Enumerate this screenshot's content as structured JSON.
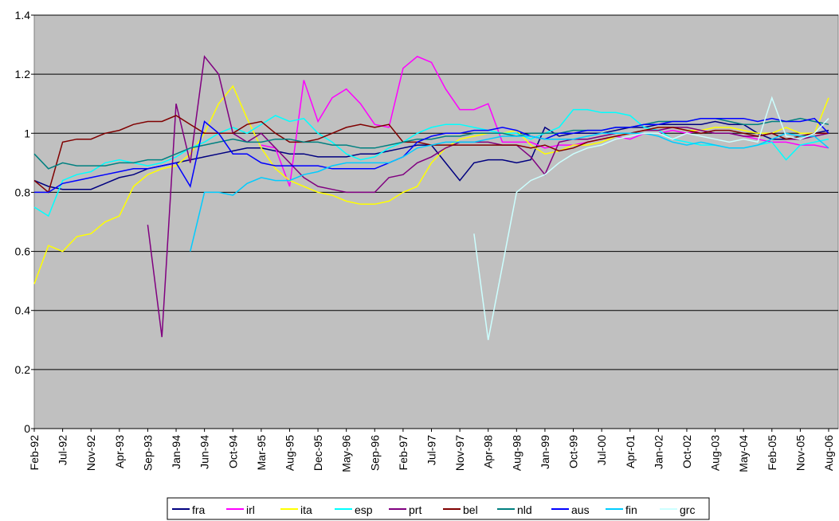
{
  "chart_data": {
    "type": "line",
    "categories": [
      "Feb-92",
      null,
      "Jul-92",
      null,
      "Nov-92",
      null,
      "Apr-93",
      null,
      "Sep-93",
      null,
      "Jan-94",
      null,
      "Jun-94",
      null,
      "Oct-94",
      null,
      "Mar-95",
      null,
      "Aug-95",
      null,
      "Dec-95",
      null,
      "May-96",
      null,
      "Sep-96",
      null,
      "Feb-97",
      null,
      "Jul-97",
      null,
      "Nov-97",
      null,
      "Apr-98",
      null,
      "Aug-98",
      null,
      "Jan-99",
      null,
      "Oct-99",
      null,
      "Jul-00",
      null,
      "Apr-01",
      null,
      "Jan-02",
      null,
      "Oct-02",
      null,
      "Aug-03",
      null,
      "May-04",
      null,
      "Feb-05",
      null,
      "Nov-05",
      null,
      "Aug-06"
    ],
    "ylim": [
      0,
      1.4
    ],
    "yticks": [
      0,
      0.2,
      0.4,
      0.6,
      0.8,
      1,
      1.2,
      1.4
    ],
    "grid": true,
    "legend": "bottom",
    "series": [
      {
        "name": "fra",
        "color": "#000080",
        "values": [
          0.84,
          0.82,
          0.81,
          0.81,
          0.81,
          0.83,
          0.85,
          0.86,
          0.88,
          0.89,
          0.9,
          0.91,
          0.92,
          0.93,
          0.94,
          0.95,
          0.95,
          0.94,
          0.93,
          0.93,
          0.92,
          0.92,
          0.92,
          0.93,
          0.93,
          0.94,
          0.95,
          0.96,
          0.96,
          0.9,
          0.84,
          0.9,
          0.91,
          0.91,
          0.9,
          0.91,
          1.02,
          0.99,
          1.0,
          1.0,
          1.0,
          1.01,
          1.02,
          1.02,
          1.03,
          1.03,
          1.03,
          1.03,
          1.04,
          1.03,
          1.03,
          1.0,
          0.98,
          0.98,
          0.99,
          1.0,
          1.01
        ]
      },
      {
        "name": "irl",
        "color": "#ff00ff",
        "values": [
          null,
          null,
          null,
          null,
          null,
          null,
          null,
          null,
          null,
          null,
          null,
          null,
          null,
          null,
          null,
          null,
          0.96,
          0.95,
          0.82,
          1.18,
          1.04,
          1.12,
          1.15,
          1.1,
          1.03,
          1.02,
          1.22,
          1.26,
          1.24,
          1.15,
          1.08,
          1.08,
          1.1,
          0.97,
          0.97,
          0.97,
          0.95,
          0.96,
          0.96,
          0.97,
          0.98,
          0.99,
          0.98,
          1.0,
          1.0,
          1.01,
          1.0,
          1.01,
          1.0,
          1.0,
          0.99,
          0.98,
          0.97,
          0.97,
          0.96,
          0.96,
          0.95
        ]
      },
      {
        "name": "ita",
        "color": "#ffff00",
        "values": [
          0.49,
          0.62,
          0.6,
          0.65,
          0.66,
          0.7,
          0.72,
          0.82,
          0.86,
          0.88,
          0.89,
          0.93,
          1.0,
          1.1,
          1.16,
          1.05,
          0.95,
          0.88,
          0.84,
          0.82,
          0.8,
          0.79,
          0.77,
          0.76,
          0.76,
          0.77,
          0.8,
          0.82,
          0.9,
          0.95,
          0.98,
          0.99,
          1.0,
          1.0,
          1.01,
          0.96,
          0.93,
          0.94,
          0.96,
          0.96,
          0.97,
          0.99,
          1.0,
          1.01,
          1.02,
          1.02,
          1.01,
          1.01,
          1.02,
          1.02,
          1.01,
          1.0,
          1.0,
          1.02,
          1.0,
          1.0,
          1.12
        ]
      },
      {
        "name": "esp",
        "color": "#00ffff",
        "values": [
          0.75,
          0.72,
          0.84,
          0.86,
          0.87,
          0.9,
          0.91,
          0.9,
          0.89,
          0.9,
          0.92,
          0.95,
          0.97,
          1.0,
          1.02,
          1.0,
          1.03,
          1.06,
          1.04,
          1.05,
          1.0,
          0.97,
          0.93,
          0.91,
          0.92,
          0.95,
          0.97,
          1.0,
          1.02,
          1.03,
          1.03,
          1.02,
          1.01,
          1.0,
          1.0,
          0.98,
          1.0,
          1.02,
          1.08,
          1.08,
          1.07,
          1.07,
          1.06,
          1.02,
          1.01,
          0.98,
          0.97,
          0.96,
          0.96,
          0.95,
          0.95,
          0.96,
          0.97,
          0.91,
          0.96,
          0.97,
          0.98
        ]
      },
      {
        "name": "prt",
        "color": "#800080",
        "values": [
          null,
          null,
          null,
          null,
          null,
          null,
          null,
          null,
          0.69,
          0.31,
          1.1,
          0.9,
          1.26,
          1.2,
          1.0,
          0.97,
          1.0,
          0.95,
          0.9,
          0.85,
          0.82,
          0.81,
          0.8,
          0.8,
          0.8,
          0.85,
          0.86,
          0.9,
          0.92,
          0.95,
          0.97,
          0.97,
          0.97,
          0.96,
          0.96,
          0.92,
          0.86,
          0.97,
          0.98,
          0.98,
          0.99,
          1.0,
          1.0,
          1.01,
          1.01,
          1.02,
          1.02,
          1.01,
          1.0,
          1.0,
          0.99,
          0.99,
          1.0,
          0.98,
          0.98,
          0.99,
          1.0
        ]
      },
      {
        "name": "bel",
        "color": "#800000",
        "values": [
          0.84,
          0.8,
          0.97,
          0.98,
          0.98,
          1.0,
          1.01,
          1.03,
          1.04,
          1.04,
          1.06,
          1.03,
          1.0,
          1.0,
          1.0,
          1.03,
          1.04,
          1.0,
          0.97,
          0.97,
          0.98,
          1.0,
          1.02,
          1.03,
          1.02,
          1.03,
          0.97,
          0.97,
          0.96,
          0.96,
          0.96,
          0.96,
          0.96,
          0.96,
          0.96,
          0.95,
          0.96,
          0.94,
          0.95,
          0.97,
          0.98,
          0.99,
          1.0,
          1.01,
          1.02,
          1.02,
          1.01,
          1.0,
          1.01,
          1.01,
          1.0,
          0.99,
          1.0,
          0.98,
          0.99,
          1.0,
          1.0
        ]
      },
      {
        "name": "nld",
        "color": "#008080",
        "values": [
          0.93,
          0.88,
          0.9,
          0.89,
          0.89,
          0.89,
          0.9,
          0.9,
          0.91,
          0.91,
          0.93,
          0.95,
          0.96,
          0.97,
          0.98,
          0.97,
          0.97,
          0.98,
          0.98,
          0.97,
          0.97,
          0.96,
          0.96,
          0.95,
          0.95,
          0.96,
          0.97,
          0.98,
          0.98,
          0.99,
          0.99,
          1.0,
          1.0,
          1.0,
          0.99,
          1.0,
          1.0,
          1.0,
          1.01,
          1.01,
          1.01,
          1.02,
          1.02,
          1.03,
          1.04,
          1.04,
          1.04,
          1.05,
          1.05,
          1.04,
          1.03,
          1.03,
          1.04,
          1.04,
          1.05,
          1.04,
          1.03
        ]
      },
      {
        "name": "aus",
        "color": "#0000ff",
        "values": [
          0.8,
          0.8,
          0.83,
          0.84,
          0.85,
          0.86,
          0.87,
          0.88,
          0.88,
          0.89,
          0.9,
          0.82,
          1.04,
          1.0,
          0.93,
          0.93,
          0.9,
          0.89,
          0.89,
          0.89,
          0.89,
          0.88,
          0.88,
          0.88,
          0.88,
          0.9,
          0.92,
          0.97,
          0.99,
          1.0,
          1.0,
          1.01,
          1.01,
          1.02,
          1.01,
          0.99,
          0.98,
          1.0,
          1.0,
          1.01,
          1.01,
          1.02,
          1.02,
          1.03,
          1.03,
          1.04,
          1.04,
          1.05,
          1.05,
          1.05,
          1.05,
          1.04,
          1.05,
          1.04,
          1.04,
          1.05,
          1.0
        ]
      },
      {
        "name": "fin",
        "color": "#00ccff",
        "values": [
          null,
          null,
          null,
          null,
          null,
          null,
          null,
          null,
          null,
          null,
          null,
          0.6,
          0.8,
          0.8,
          0.79,
          0.83,
          0.85,
          0.84,
          0.84,
          0.86,
          0.87,
          0.89,
          0.9,
          0.9,
          0.9,
          0.9,
          0.92,
          0.95,
          0.96,
          0.97,
          0.97,
          0.97,
          0.98,
          0.99,
          0.99,
          0.99,
          0.98,
          0.98,
          0.98,
          0.99,
          1.0,
          1.0,
          1.0,
          1.0,
          0.99,
          0.97,
          0.96,
          0.97,
          0.96,
          0.95,
          0.95,
          0.96,
          0.98,
          1.0,
          0.99,
          0.99,
          0.95
        ]
      },
      {
        "name": "grc",
        "color": "#ccffff",
        "values": [
          null,
          null,
          null,
          null,
          null,
          null,
          null,
          null,
          null,
          null,
          null,
          null,
          null,
          null,
          null,
          null,
          null,
          null,
          null,
          null,
          null,
          null,
          null,
          null,
          null,
          null,
          null,
          null,
          null,
          null,
          null,
          0.66,
          0.3,
          0.55,
          0.8,
          0.84,
          0.86,
          0.9,
          0.93,
          0.95,
          0.96,
          0.98,
          0.99,
          1.0,
          1.0,
          0.98,
          1.0,
          0.99,
          0.98,
          0.97,
          0.98,
          0.97,
          1.12,
          0.99,
          0.98,
          1.0,
          1.05
        ]
      }
    ]
  }
}
